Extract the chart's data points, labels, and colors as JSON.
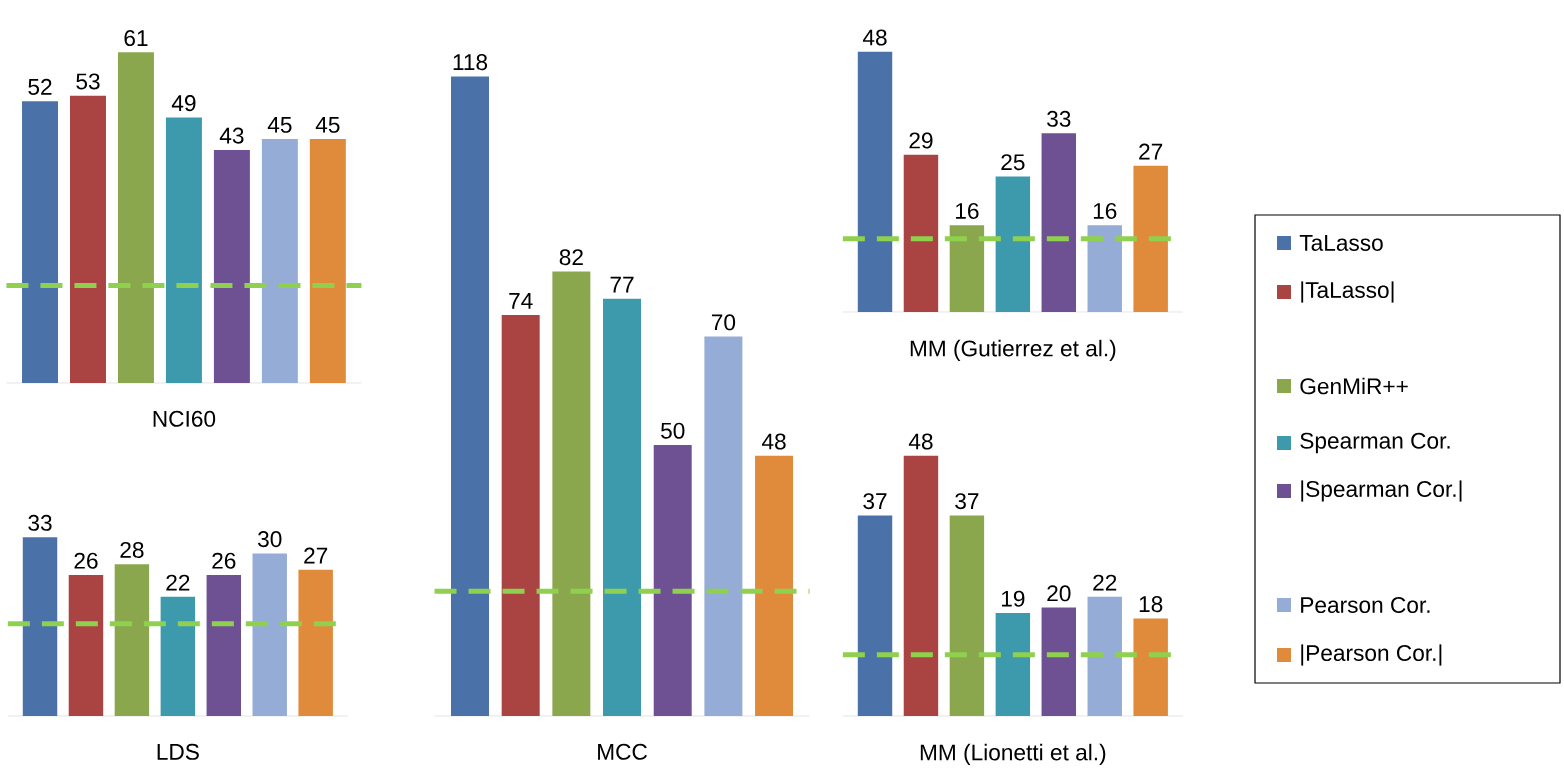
{
  "chart_data": [
    {
      "type": "bar",
      "xlabel": "NCI60",
      "categories": [
        null,
        null,
        null,
        null,
        null,
        null,
        null
      ],
      "data_labels": true,
      "values": [
        52,
        53,
        61,
        49,
        43,
        45,
        45
      ],
      "colors": [
        "#4a72a8",
        "#a94442",
        "#8aa74e",
        "#3d9aad",
        "#6e5192",
        "#95acd6",
        "#e08a3c"
      ],
      "ref_lines": [
        {
          "axis": "y",
          "value": 18,
          "color": "#8fd14f",
          "line_style": "dashed"
        }
      ]
    },
    {
      "type": "bar",
      "xlabel": "LDS",
      "categories": [
        null,
        null,
        null,
        null,
        null,
        null,
        null
      ],
      "data_labels": true,
      "values": [
        33,
        26,
        28,
        22,
        26,
        30,
        27
      ],
      "colors": [
        "#4a72a8",
        "#a94442",
        "#8aa74e",
        "#3d9aad",
        "#6e5192",
        "#95acd6",
        "#e08a3c"
      ],
      "ref_lines": [
        {
          "axis": "y",
          "value": 17,
          "color": "#8fd14f",
          "line_style": "dashed"
        }
      ]
    },
    {
      "type": "bar",
      "xlabel": "MCC",
      "categories": [
        null,
        null,
        null,
        null,
        null,
        null,
        null
      ],
      "data_labels": true,
      "values": [
        118,
        74,
        82,
        77,
        50,
        70,
        48
      ],
      "colors": [
        "#4a72a8",
        "#a94442",
        "#8aa74e",
        "#3d9aad",
        "#6e5192",
        "#95acd6",
        "#e08a3c"
      ],
      "ref_lines": [
        {
          "axis": "y",
          "value": 23,
          "color": "#8fd14f",
          "line_style": "dashed"
        }
      ]
    },
    {
      "type": "bar",
      "xlabel": "MM (Gutierrez et al.)",
      "categories": [
        null,
        null,
        null,
        null,
        null,
        null,
        null
      ],
      "data_labels": true,
      "values": [
        48,
        29,
        16,
        25,
        33,
        16,
        27
      ],
      "colors": [
        "#4a72a8",
        "#a94442",
        "#8aa74e",
        "#3d9aad",
        "#6e5192",
        "#95acd6",
        "#e08a3c"
      ],
      "ref_lines": [
        {
          "axis": "y",
          "value": 13.5,
          "color": "#8fd14f",
          "line_style": "dashed"
        }
      ]
    },
    {
      "type": "bar",
      "xlabel": "MM (Lionetti et al.)",
      "categories": [
        null,
        null,
        null,
        null,
        null,
        null,
        null
      ],
      "data_labels": true,
      "values": [
        37,
        48,
        37,
        19,
        20,
        22,
        18
      ],
      "colors": [
        "#4a72a8",
        "#a94442",
        "#8aa74e",
        "#3d9aad",
        "#6e5192",
        "#95acd6",
        "#e08a3c"
      ],
      "ref_lines": [
        {
          "axis": "y",
          "value": 11.3,
          "color": "#8fd14f",
          "line_style": "dashed"
        }
      ]
    },
    {
      "type": "other",
      "legend": "right",
      "series": [
        {
          "name": "TaLasso",
          "color": "#4a72a8"
        },
        {
          "name": "|TaLasso|",
          "color": "#a94442"
        },
        {
          "name": "GenMiR++",
          "color": "#8aa74e"
        },
        {
          "name": "Spearman Cor.",
          "color": "#3d9aad"
        },
        {
          "name": "|Spearman Cor.|",
          "color": "#6e5192"
        },
        {
          "name": "Pearson Cor.",
          "color": "#95acd6"
        },
        {
          "name": "|Pearson Cor.|",
          "color": "#e08a3c"
        }
      ]
    }
  ]
}
